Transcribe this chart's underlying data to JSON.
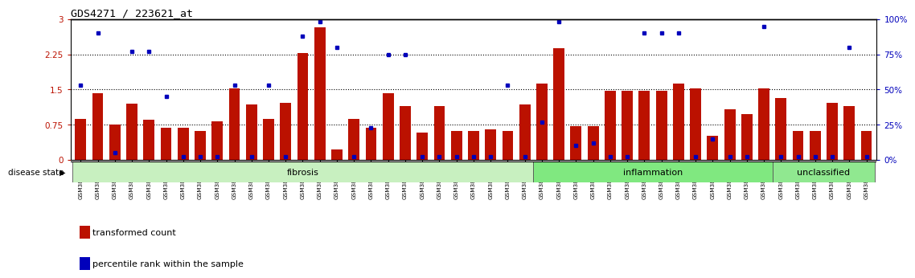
{
  "title": "GDS4271 / 223621_at",
  "samples": [
    "GSM380382",
    "GSM380383",
    "GSM380384",
    "GSM380385",
    "GSM380386",
    "GSM380387",
    "GSM380388",
    "GSM380389",
    "GSM380390",
    "GSM380391",
    "GSM380392",
    "GSM380393",
    "GSM380394",
    "GSM380395",
    "GSM380396",
    "GSM380397",
    "GSM380398",
    "GSM380399",
    "GSM380400",
    "GSM380401",
    "GSM380402",
    "GSM380403",
    "GSM380404",
    "GSM380405",
    "GSM380406",
    "GSM380407",
    "GSM380408",
    "GSM380409",
    "GSM380410",
    "GSM380411",
    "GSM380412",
    "GSM380413",
    "GSM380414",
    "GSM380415",
    "GSM380416",
    "GSM380417",
    "GSM380418",
    "GSM380419",
    "GSM380420",
    "GSM380421",
    "GSM380422",
    "GSM380423",
    "GSM380424",
    "GSM380425",
    "GSM380426",
    "GSM380427",
    "GSM380428"
  ],
  "red_bars": [
    0.88,
    1.42,
    0.75,
    1.2,
    0.85,
    0.68,
    0.68,
    0.62,
    0.82,
    1.52,
    1.18,
    0.87,
    1.22,
    2.28,
    2.82,
    0.22,
    0.87,
    0.68,
    1.42,
    1.15,
    0.58,
    1.15,
    0.62,
    0.62,
    0.65,
    0.62,
    1.18,
    1.62,
    2.38,
    0.72,
    0.72,
    1.48,
    1.48,
    1.48,
    1.48,
    1.62,
    1.52,
    0.52,
    1.08,
    0.98,
    1.52,
    1.32,
    0.62,
    0.62,
    1.22,
    1.15,
    0.62
  ],
  "blue_dots_pct": [
    53,
    90,
    5,
    77,
    77,
    45,
    2,
    2,
    2,
    53,
    2,
    53,
    2,
    88,
    98,
    80,
    2,
    23,
    75,
    75,
    2,
    2,
    2,
    2,
    2,
    53,
    2,
    27,
    98,
    10,
    12,
    2,
    2,
    90,
    90,
    90,
    2,
    15,
    2,
    2,
    95,
    2,
    2,
    2,
    2,
    80,
    2
  ],
  "groups": [
    {
      "label": "fibrosis",
      "start": 0,
      "end": 27,
      "color": "#c8f0c0"
    },
    {
      "label": "inflammation",
      "start": 27,
      "end": 41,
      "color": "#80e880"
    },
    {
      "label": "unclassified",
      "start": 41,
      "end": 47,
      "color": "#90e890"
    }
  ],
  "ylim_left": [
    0,
    3.0
  ],
  "ylim_right": [
    0,
    100
  ],
  "yticks_left": [
    0,
    0.75,
    1.5,
    2.25,
    3.0
  ],
  "yticks_right": [
    0,
    25,
    50,
    75,
    100
  ],
  "ytick_labels_left": [
    "0",
    "0.75",
    "1.5",
    "2.25",
    "3"
  ],
  "ytick_labels_right": [
    "0%",
    "25%",
    "50%",
    "75%",
    "100%"
  ],
  "hlines": [
    0.75,
    1.5,
    2.25
  ],
  "bar_color": "#bb1100",
  "dot_color": "#0000bb",
  "bar_width": 0.65,
  "legend_items": [
    "transformed count",
    "percentile rank within the sample"
  ],
  "disease_state_label": "disease state"
}
